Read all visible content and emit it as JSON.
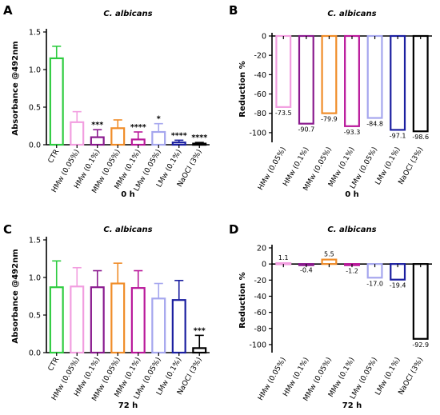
{
  "chart_data": [
    {
      "panel": "A",
      "type": "bar",
      "title": "C. albicans",
      "xlabel": "0 h",
      "ylabel": "Absorbance @492nm",
      "ylim": [
        0,
        1.5
      ],
      "yticks": [
        "0.0",
        "0.5",
        "1.0",
        "1.5"
      ],
      "categories": [
        "CTR",
        "HMw (0.05%)",
        "HMw (0.1%)",
        "MMw (0.05%)",
        "MMw (0.1%)",
        "LMw (0.05%)",
        "LMw (0.1%)",
        "NaOCl (3%)"
      ],
      "values": [
        1.15,
        0.3,
        0.1,
        0.22,
        0.07,
        0.17,
        0.03,
        0.015
      ],
      "errors": [
        0.16,
        0.14,
        0.1,
        0.11,
        0.1,
        0.11,
        0.03,
        0.015
      ],
      "significance": [
        "",
        "",
        "***",
        "",
        "****",
        "*",
        "****",
        "****"
      ],
      "colors": [
        "#2ecc40",
        "#f29ee0",
        "#8a1a8e",
        "#f08c28",
        "#b9189a",
        "#a5a6ee",
        "#1b1fa0",
        "#000000"
      ]
    },
    {
      "panel": "B",
      "type": "bar",
      "title": "C. albicans",
      "xlabel": "0 h",
      "ylabel": "Reduction %",
      "ylim": [
        -110,
        0
      ],
      "yticks": [
        "0",
        "-20",
        "-40",
        "-60",
        "-80",
        "-100"
      ],
      "categories": [
        "HMw (0.05%)",
        "HMw (0.1%)",
        "MMw (0.05%)",
        "MMw (0.1%)",
        "LMw (0.05%)",
        "LMw (0.1%)",
        "NaOCl (3%)"
      ],
      "values": [
        -73.5,
        -90.7,
        -79.9,
        -93.3,
        -84.8,
        -97.1,
        -98.6
      ],
      "data_labels": [
        "-73.5",
        "-90.7",
        "-79.9",
        "-93.3",
        "-84.8",
        "-97.1",
        "-98.6"
      ],
      "colors": [
        "#f29ee0",
        "#8a1a8e",
        "#f08c28",
        "#b9189a",
        "#a5a6ee",
        "#1b1fa0",
        "#000000"
      ]
    },
    {
      "panel": "C",
      "type": "bar",
      "title": "C. albicans",
      "xlabel": "72 h",
      "ylabel": "Absorbance @492nm",
      "ylim": [
        0,
        1.5
      ],
      "yticks": [
        "0.0",
        "0.5",
        "1.0",
        "1.5"
      ],
      "categories": [
        "CTR",
        "HMw (0.05%)",
        "HMw (0.1%)",
        "MMw (0.05%)",
        "MMw (0.1%)",
        "LMw (0.05%)",
        "LMw (0.1%)",
        "NaOCl (3%)"
      ],
      "values": [
        0.87,
        0.88,
        0.87,
        0.92,
        0.86,
        0.72,
        0.7,
        0.06
      ],
      "errors": [
        0.35,
        0.25,
        0.22,
        0.27,
        0.23,
        0.2,
        0.26,
        0.17
      ],
      "significance": [
        "",
        "",
        "",
        "",
        "",
        "",
        "",
        "***"
      ],
      "colors": [
        "#2ecc40",
        "#f29ee0",
        "#8a1a8e",
        "#f08c28",
        "#b9189a",
        "#a5a6ee",
        "#1b1fa0",
        "#000000"
      ]
    },
    {
      "panel": "D",
      "type": "bar",
      "title": "C. albicans",
      "xlabel": "72 h",
      "ylabel": "Reduction %",
      "ylim": [
        -110,
        20
      ],
      "yticks": [
        "20",
        "0",
        "-20",
        "-40",
        "-60",
        "-80",
        "-100"
      ],
      "categories": [
        "HMw (0.05%)",
        "HMw (0.1%)",
        "MMw (0.05%)",
        "MMw (0.1%)",
        "LMw (0.05%)",
        "LMw (0.1%)",
        "NaOCl (3%)"
      ],
      "values": [
        1.1,
        -0.4,
        5.5,
        -1.2,
        -17.0,
        -19.4,
        -92.9
      ],
      "data_labels": [
        "1.1",
        "-0.4",
        "5.5",
        "-1.2",
        "-17.0",
        "-19.4",
        "-92.9"
      ],
      "colors": [
        "#f29ee0",
        "#8a1a8e",
        "#f08c28",
        "#b9189a",
        "#a5a6ee",
        "#1b1fa0",
        "#000000"
      ]
    }
  ]
}
